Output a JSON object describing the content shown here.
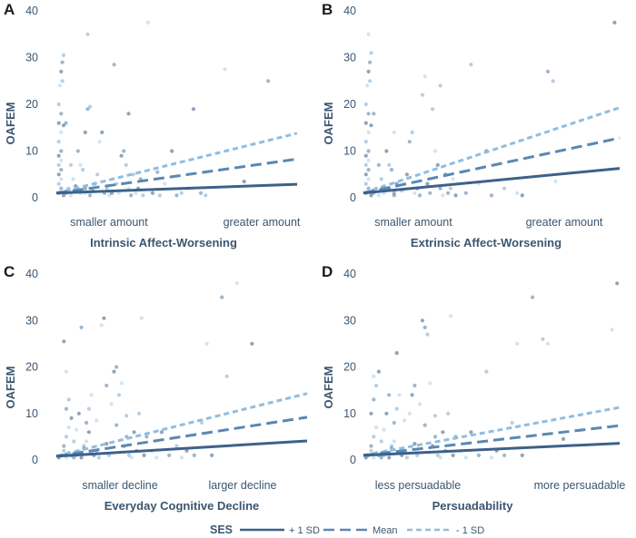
{
  "chart_data": [
    {
      "type": "scatter",
      "panel": "A",
      "title": "",
      "xlabel": "Intrinsic Affect-Worsening",
      "ylabel": "OAFEM",
      "x_tick_labels": [
        "smaller amount",
        "greater amount"
      ],
      "xlim": [
        0,
        1
      ],
      "ylim": [
        0,
        40
      ],
      "y_ticks": [
        0,
        10,
        20,
        30,
        40
      ],
      "series": [
        {
          "name": "+ 1 SD",
          "x": [
            0,
            1
          ],
          "y": [
            1.0,
            2.9
          ]
        },
        {
          "name": "Mean",
          "x": [
            0,
            1
          ],
          "y": [
            1.0,
            8.3
          ]
        },
        {
          "name": "- 1 SD",
          "x": [
            0,
            1
          ],
          "y": [
            1.0,
            13.8
          ]
        }
      ],
      "points": [
        [
          0.01,
          1
        ],
        [
          0.02,
          2
        ],
        [
          0.01,
          3
        ],
        [
          0.02,
          4
        ],
        [
          0.01,
          5
        ],
        [
          0.02,
          6
        ],
        [
          0.01,
          7
        ],
        [
          0.02,
          8
        ],
        [
          0.01,
          9
        ],
        [
          0.02,
          10
        ],
        [
          0.01,
          12
        ],
        [
          0.02,
          14
        ],
        [
          0.01,
          16
        ],
        [
          0.02,
          18
        ],
        [
          0.01,
          20
        ],
        [
          0.015,
          24
        ],
        [
          0.02,
          27
        ],
        [
          0.025,
          29
        ],
        [
          0.03,
          30.5
        ],
        [
          0.02,
          1.5
        ],
        [
          0.03,
          0.5
        ],
        [
          0.04,
          1
        ],
        [
          0.05,
          2
        ],
        [
          0.06,
          0.5
        ],
        [
          0.03,
          15.5
        ],
        [
          0.04,
          16
        ],
        [
          0.025,
          25
        ],
        [
          0.1,
          1
        ],
        [
          0.12,
          2
        ],
        [
          0.14,
          0.5
        ],
        [
          0.13,
          35
        ],
        [
          0.1,
          7
        ],
        [
          0.12,
          14
        ],
        [
          0.13,
          19
        ],
        [
          0.14,
          19.5
        ],
        [
          0.12,
          1
        ],
        [
          0.15,
          1.5
        ],
        [
          0.16,
          3
        ],
        [
          0.17,
          5
        ],
        [
          0.18,
          12
        ],
        [
          0.19,
          14
        ],
        [
          0.2,
          1
        ],
        [
          0.21,
          2
        ],
        [
          0.22,
          0.5
        ],
        [
          0.23,
          1
        ],
        [
          0.24,
          28.5
        ],
        [
          0.25,
          3
        ],
        [
          0.26,
          1
        ],
        [
          0.27,
          9
        ],
        [
          0.28,
          10
        ],
        [
          0.29,
          7
        ],
        [
          0.3,
          2
        ],
        [
          0.3,
          18
        ],
        [
          0.31,
          0.5
        ],
        [
          0.32,
          5
        ],
        [
          0.33,
          1
        ],
        [
          0.34,
          2
        ],
        [
          0.35,
          4
        ],
        [
          0.36,
          0.5
        ],
        [
          0.38,
          37.5
        ],
        [
          0.4,
          1
        ],
        [
          0.42,
          5.5
        ],
        [
          0.43,
          0.5
        ],
        [
          0.45,
          3
        ],
        [
          0.48,
          10
        ],
        [
          0.5,
          0.5
        ],
        [
          0.52,
          1
        ],
        [
          0.55,
          2
        ],
        [
          0.57,
          19
        ],
        [
          0.6,
          1
        ],
        [
          0.62,
          0.5
        ],
        [
          0.7,
          27.5
        ],
        [
          0.78,
          3.5
        ],
        [
          0.88,
          25
        ],
        [
          0.06,
          7
        ],
        [
          0.07,
          4
        ],
        [
          0.08,
          2.5
        ],
        [
          0.09,
          10
        ],
        [
          0.11,
          6
        ]
      ]
    },
    {
      "type": "scatter",
      "panel": "B",
      "title": "",
      "xlabel": "Extrinsic Affect-Worsening",
      "ylabel": "OAFEM",
      "x_tick_labels": [
        "smaller amount",
        "greater amount"
      ],
      "xlim": [
        0,
        1
      ],
      "ylim": [
        0,
        40
      ],
      "y_ticks": [
        0,
        10,
        20,
        30,
        40
      ],
      "series": [
        {
          "name": "+ 1 SD",
          "x": [
            0,
            1
          ],
          "y": [
            1.0,
            6.3
          ]
        },
        {
          "name": "Mean",
          "x": [
            0,
            1
          ],
          "y": [
            1.0,
            12.8
          ]
        },
        {
          "name": "- 1 SD",
          "x": [
            0,
            1
          ],
          "y": [
            1.0,
            19.3
          ]
        }
      ],
      "points": [
        [
          0.01,
          1
        ],
        [
          0.02,
          2
        ],
        [
          0.01,
          3
        ],
        [
          0.02,
          4
        ],
        [
          0.01,
          5
        ],
        [
          0.02,
          6
        ],
        [
          0.01,
          7
        ],
        [
          0.02,
          8
        ],
        [
          0.01,
          9
        ],
        [
          0.02,
          10
        ],
        [
          0.01,
          12
        ],
        [
          0.02,
          14
        ],
        [
          0.01,
          16
        ],
        [
          0.02,
          18
        ],
        [
          0.01,
          20
        ],
        [
          0.015,
          24
        ],
        [
          0.02,
          27
        ],
        [
          0.025,
          29
        ],
        [
          0.03,
          31
        ],
        [
          0.02,
          35
        ],
        [
          0.03,
          0.5
        ],
        [
          0.04,
          1
        ],
        [
          0.05,
          2
        ],
        [
          0.06,
          0.5
        ],
        [
          0.03,
          15.5
        ],
        [
          0.04,
          18
        ],
        [
          0.025,
          25
        ],
        [
          0.08,
          1
        ],
        [
          0.1,
          2
        ],
        [
          0.12,
          0.5
        ],
        [
          0.1,
          7
        ],
        [
          0.12,
          14
        ],
        [
          0.13,
          3
        ],
        [
          0.12,
          1
        ],
        [
          0.15,
          1.5
        ],
        [
          0.16,
          3
        ],
        [
          0.17,
          5
        ],
        [
          0.18,
          12
        ],
        [
          0.19,
          14
        ],
        [
          0.2,
          1
        ],
        [
          0.21,
          2
        ],
        [
          0.22,
          0.5
        ],
        [
          0.23,
          22
        ],
        [
          0.24,
          26
        ],
        [
          0.25,
          3
        ],
        [
          0.26,
          1
        ],
        [
          0.27,
          19
        ],
        [
          0.28,
          10
        ],
        [
          0.29,
          7
        ],
        [
          0.3,
          2
        ],
        [
          0.3,
          24
        ],
        [
          0.31,
          0.5
        ],
        [
          0.32,
          5
        ],
        [
          0.33,
          1
        ],
        [
          0.34,
          2
        ],
        [
          0.35,
          4
        ],
        [
          0.36,
          0.5
        ],
        [
          0.4,
          1
        ],
        [
          0.42,
          28.5
        ],
        [
          0.45,
          3
        ],
        [
          0.48,
          10
        ],
        [
          0.5,
          0.5
        ],
        [
          0.55,
          2
        ],
        [
          0.6,
          1
        ],
        [
          0.62,
          0.5
        ],
        [
          0.72,
          27
        ],
        [
          0.74,
          25
        ],
        [
          0.75,
          3.5
        ],
        [
          0.98,
          37.5
        ],
        [
          0.06,
          7
        ],
        [
          0.07,
          4
        ],
        [
          0.08,
          2.5
        ],
        [
          0.09,
          10
        ],
        [
          0.11,
          6
        ]
      ]
    },
    {
      "type": "scatter",
      "panel": "C",
      "title": "",
      "xlabel": "Everyday Cognitive Decline",
      "ylabel": "OAFEM",
      "x_tick_labels": [
        "smaller decline",
        "larger decline"
      ],
      "xlim": [
        0,
        1
      ],
      "ylim": [
        0,
        40
      ],
      "y_ticks": [
        0,
        10,
        20,
        30,
        40
      ],
      "series": [
        {
          "name": "+ 1 SD",
          "x": [
            0,
            1
          ],
          "y": [
            0.8,
            4.1
          ]
        },
        {
          "name": "Mean",
          "x": [
            0,
            1
          ],
          "y": [
            0.8,
            9.2
          ]
        },
        {
          "name": "- 1 SD",
          "x": [
            0,
            1
          ],
          "y": [
            0.8,
            14.3
          ]
        }
      ],
      "points": [
        [
          0.01,
          0.5
        ],
        [
          0.02,
          1
        ],
        [
          0.03,
          2
        ],
        [
          0.04,
          0.5
        ],
        [
          0.05,
          1.5
        ],
        [
          0.03,
          3
        ],
        [
          0.04,
          5
        ],
        [
          0.05,
          7
        ],
        [
          0.06,
          9
        ],
        [
          0.04,
          11
        ],
        [
          0.05,
          13
        ],
        [
          0.04,
          19
        ],
        [
          0.03,
          25.5
        ],
        [
          0.07,
          0.5
        ],
        [
          0.08,
          1
        ],
        [
          0.09,
          2
        ],
        [
          0.1,
          0.5
        ],
        [
          0.1,
          28.5
        ],
        [
          0.11,
          3
        ],
        [
          0.12,
          4
        ],
        [
          0.13,
          6
        ],
        [
          0.12,
          8
        ],
        [
          0.13,
          11
        ],
        [
          0.14,
          14
        ],
        [
          0.15,
          1
        ],
        [
          0.16,
          2
        ],
        [
          0.17,
          0.5
        ],
        [
          0.18,
          29
        ],
        [
          0.19,
          30.5
        ],
        [
          0.2,
          16
        ],
        [
          0.21,
          1
        ],
        [
          0.22,
          12
        ],
        [
          0.23,
          19
        ],
        [
          0.24,
          20
        ],
        [
          0.25,
          14
        ],
        [
          0.26,
          16.5
        ],
        [
          0.27,
          3
        ],
        [
          0.28,
          5
        ],
        [
          0.29,
          1
        ],
        [
          0.3,
          0.5
        ],
        [
          0.31,
          6
        ],
        [
          0.32,
          2
        ],
        [
          0.33,
          10
        ],
        [
          0.34,
          30.5
        ],
        [
          0.35,
          1
        ],
        [
          0.36,
          5
        ],
        [
          0.38,
          2
        ],
        [
          0.4,
          0.5
        ],
        [
          0.42,
          6
        ],
        [
          0.45,
          1
        ],
        [
          0.48,
          3
        ],
        [
          0.5,
          0.5
        ],
        [
          0.52,
          2
        ],
        [
          0.55,
          1
        ],
        [
          0.58,
          8
        ],
        [
          0.6,
          25
        ],
        [
          0.62,
          1
        ],
        [
          0.66,
          35
        ],
        [
          0.68,
          18
        ],
        [
          0.72,
          38
        ],
        [
          0.78,
          25
        ],
        [
          0.06,
          1
        ],
        [
          0.07,
          4
        ],
        [
          0.08,
          6.5
        ],
        [
          0.09,
          10
        ],
        [
          0.11,
          2.5
        ],
        [
          0.14,
          1.5
        ],
        [
          0.16,
          8.5
        ],
        [
          0.2,
          3.5
        ],
        [
          0.24,
          7.5
        ],
        [
          0.28,
          9.5
        ]
      ]
    },
    {
      "type": "scatter",
      "panel": "D",
      "title": "",
      "xlabel": "Persuadability",
      "ylabel": "OAFEM",
      "x_tick_labels": [
        "less persuadable",
        "more persuadable"
      ],
      "xlim": [
        0,
        1
      ],
      "ylim": [
        0,
        40
      ],
      "y_ticks": [
        0,
        10,
        20,
        30,
        40
      ],
      "series": [
        {
          "name": "+ 1 SD",
          "x": [
            0,
            1
          ],
          "y": [
            1.0,
            3.6
          ]
        },
        {
          "name": "Mean",
          "x": [
            0,
            1
          ],
          "y": [
            1.0,
            7.4
          ]
        },
        {
          "name": "- 1 SD",
          "x": [
            0,
            1
          ],
          "y": [
            1.0,
            11.3
          ]
        }
      ],
      "points": [
        [
          0.01,
          0.5
        ],
        [
          0.02,
          1
        ],
        [
          0.03,
          2
        ],
        [
          0.04,
          0.5
        ],
        [
          0.05,
          1.5
        ],
        [
          0.03,
          3
        ],
        [
          0.04,
          5
        ],
        [
          0.05,
          7
        ],
        [
          0.03,
          10
        ],
        [
          0.04,
          13
        ],
        [
          0.05,
          16
        ],
        [
          0.04,
          18
        ],
        [
          0.06,
          19
        ],
        [
          0.07,
          0.5
        ],
        [
          0.08,
          1
        ],
        [
          0.09,
          2
        ],
        [
          0.1,
          0.5
        ],
        [
          0.1,
          14
        ],
        [
          0.11,
          3
        ],
        [
          0.12,
          4
        ],
        [
          0.13,
          23
        ],
        [
          0.12,
          8
        ],
        [
          0.13,
          11
        ],
        [
          0.14,
          14
        ],
        [
          0.15,
          1
        ],
        [
          0.16,
          2
        ],
        [
          0.17,
          0.5
        ],
        [
          0.18,
          10
        ],
        [
          0.19,
          14
        ],
        [
          0.2,
          16
        ],
        [
          0.21,
          1
        ],
        [
          0.22,
          12
        ],
        [
          0.23,
          30
        ],
        [
          0.24,
          28.5
        ],
        [
          0.25,
          27
        ],
        [
          0.26,
          16.5
        ],
        [
          0.27,
          3
        ],
        [
          0.28,
          5
        ],
        [
          0.29,
          1
        ],
        [
          0.3,
          0.5
        ],
        [
          0.31,
          6
        ],
        [
          0.32,
          2
        ],
        [
          0.33,
          10
        ],
        [
          0.34,
          31
        ],
        [
          0.35,
          1
        ],
        [
          0.36,
          5
        ],
        [
          0.38,
          2
        ],
        [
          0.4,
          0.5
        ],
        [
          0.42,
          6
        ],
        [
          0.45,
          1
        ],
        [
          0.48,
          19
        ],
        [
          0.5,
          0.5
        ],
        [
          0.52,
          2
        ],
        [
          0.55,
          1
        ],
        [
          0.58,
          8
        ],
        [
          0.6,
          25
        ],
        [
          0.62,
          1
        ],
        [
          0.66,
          35
        ],
        [
          0.7,
          26
        ],
        [
          0.72,
          25
        ],
        [
          0.78,
          4.5
        ],
        [
          0.06,
          1
        ],
        [
          0.07,
          4
        ],
        [
          0.08,
          6.5
        ],
        [
          0.09,
          10
        ],
        [
          0.11,
          2.5
        ],
        [
          0.14,
          1.5
        ],
        [
          0.16,
          8.5
        ],
        [
          0.2,
          3.5
        ],
        [
          0.24,
          7.5
        ],
        [
          0.28,
          9.5
        ],
        [
          0.97,
          28
        ],
        [
          0.99,
          38
        ]
      ]
    }
  ],
  "legend": {
    "title": "SES",
    "items": [
      {
        "label": "+ 1 SD",
        "color": "#3d6189",
        "dash": "solid"
      },
      {
        "label": "Mean",
        "color": "#5b87b3",
        "dash": "long"
      },
      {
        "label": "- 1 SD",
        "color": "#90bde0",
        "dash": "short"
      }
    ]
  },
  "colors": {
    "text": "#3b5670",
    "axis": "#b8c3ce",
    "points": [
      "#355a80",
      "#4e7ba6",
      "#7aa7cf",
      "#a9cdea"
    ]
  }
}
